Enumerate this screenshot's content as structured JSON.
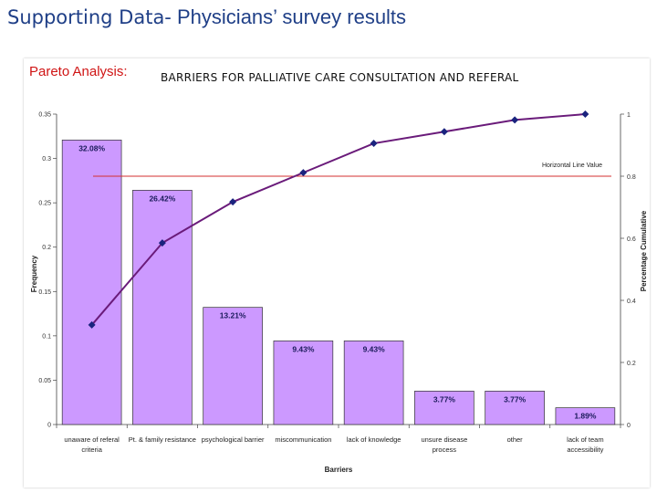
{
  "slide": {
    "title_lead": "Supporting Data-",
    "title_rest": " Physicians’ survey results"
  },
  "panel": {
    "pareto_label": "Pareto Analysis:",
    "chart_title": "BARRIERS  FOR  PALLIATIVE CARE CONSULTATION AND REFERAL"
  },
  "colors": {
    "bar_fill": "#cc99ff",
    "bar_stroke": "#333333",
    "line": "#6a1b7a",
    "marker": "#1a237e",
    "reference_line": "#d32f2f",
    "title": "#1f3f87",
    "pareto_label": "#d01515"
  },
  "chart_data": {
    "type": "bar",
    "title": "BARRIERS  FOR  PALLIATIVE CARE CONSULTATION AND REFERAL",
    "xlabel": "Barriers",
    "ylabel": "Frequency",
    "y2label": "Percentage Cumulative",
    "categories": [
      [
        "unaware of referal",
        "criteria"
      ],
      [
        "Pt. & family resistance"
      ],
      [
        "psychological barrier"
      ],
      [
        "miscommunication"
      ],
      [
        "lack of knowledge"
      ],
      [
        "unsure disease",
        "process"
      ],
      [
        "other"
      ],
      [
        "lack of team",
        "accessibility"
      ]
    ],
    "series": [
      {
        "type": "bar",
        "axis": "left",
        "values": [
          0.3208,
          0.2642,
          0.1321,
          0.0943,
          0.0943,
          0.0377,
          0.0377,
          0.0189
        ],
        "data_labels": [
          "32.08%",
          "26.42%",
          "13.21%",
          "9.43%",
          "9.43%",
          "3.77%",
          "3.77%",
          "1.89%"
        ]
      },
      {
        "type": "line",
        "axis": "right",
        "values": [
          0.3208,
          0.585,
          0.7171,
          0.8114,
          0.9057,
          0.9434,
          0.9811,
          1.0
        ]
      }
    ],
    "reference_line": {
      "axis": "right",
      "value": 0.8,
      "label": "Horizontal Line Value"
    },
    "yaxis_left": {
      "ylim": [
        0,
        0.35
      ],
      "ticks": [
        0,
        0.05,
        0.1,
        0.15,
        0.2,
        0.25,
        0.3,
        0.35
      ],
      "tick_labels": [
        "0",
        "0.05",
        "0.1",
        "0.15",
        "0.2",
        "0.25",
        "0.3",
        "0.35"
      ]
    },
    "yaxis_right": {
      "ylim": [
        0,
        1
      ],
      "ticks": [
        0,
        0.2,
        0.4,
        0.6,
        0.8,
        1
      ],
      "tick_labels": [
        "0",
        "0.2",
        "0.4",
        "0.6",
        "0.8",
        "1"
      ]
    },
    "grid": false,
    "legend": "none"
  }
}
